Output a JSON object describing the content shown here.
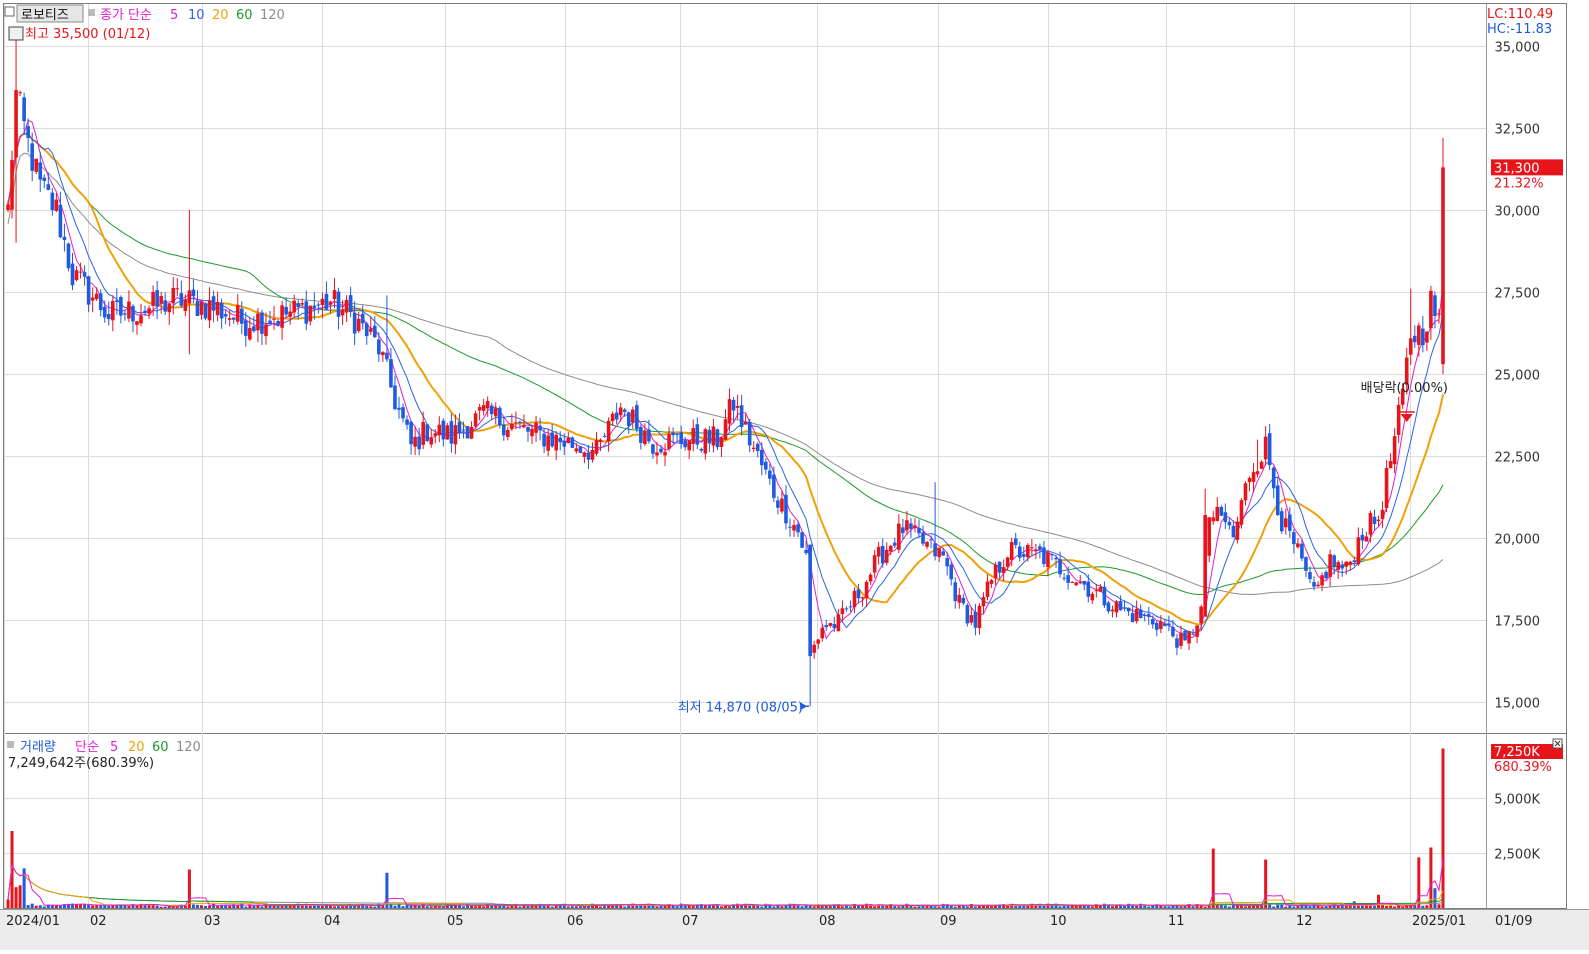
{
  "colors": {
    "up": "#e8141c",
    "down": "#1e5be0",
    "ma5": "#e01fd0",
    "ma10": "#2a63e6",
    "ma20": "#f0a10a",
    "ma60": "#1c9b2c",
    "ma120": "#8c8c8c",
    "grid": "#dcdcdc",
    "axis_text": "#333333",
    "current_price_bg": "#e8141c"
  },
  "price_panel": {
    "stock_name": "로보티즈",
    "legend_label": "종가 단순",
    "ma_periods": [
      "5",
      "10",
      "20",
      "60",
      "120"
    ],
    "high_label": "최고 35,500 (01/12)",
    "low_label": "최저 14,870 (08/05)",
    "dividend_label": "배당락(0.00%)",
    "lc_label": "LC:110.49",
    "hc_label": "HC:-11.83",
    "current_price": "31,300",
    "current_change": "21.32%",
    "y_ticks": [
      "35,000",
      "32,500",
      "30,000",
      "27,500",
      "25,000",
      "22,500",
      "20,000",
      "17,500",
      "15,000"
    ]
  },
  "volume_panel": {
    "title": "거래량",
    "legend_label": "단순",
    "ma_periods": [
      "5",
      "20",
      "60",
      "120"
    ],
    "last_volume": "7,249,642주(680.39%)",
    "current_volume": "7,250K",
    "current_change": "680.39%",
    "y_ticks": [
      "5,000K",
      "2,500K"
    ]
  },
  "x_axis": {
    "labels": [
      "2024/01",
      "02",
      "03",
      "04",
      "05",
      "06",
      "07",
      "08",
      "09",
      "10",
      "11",
      "12",
      "2025/01",
      "01/09"
    ]
  },
  "chart_data": {
    "type": "candlestick",
    "price_ylim": [
      14500,
      35700
    ],
    "volume_ylim": [
      0,
      7500000
    ],
    "months": [
      {
        "month": "2024/01",
        "open": 30000,
        "high": 35500,
        "low": 29000,
        "close": 28000,
        "volume": 1200000
      },
      {
        "month": "02",
        "open": 28000,
        "high": 28500,
        "low": 25800,
        "close": 27000,
        "volume": 300000
      },
      {
        "month": "03",
        "open": 27000,
        "high": 30000,
        "low": 25600,
        "close": 26500,
        "volume": 500000
      },
      {
        "month": "04",
        "open": 26500,
        "high": 27400,
        "low": 21500,
        "close": 22800,
        "volume": 400000
      },
      {
        "month": "05",
        "open": 22800,
        "high": 24200,
        "low": 22600,
        "close": 23200,
        "volume": 200000
      },
      {
        "month": "06",
        "open": 23200,
        "high": 25000,
        "low": 22200,
        "close": 22400,
        "volume": 200000
      },
      {
        "month": "07",
        "open": 22400,
        "high": 24200,
        "low": 22200,
        "close": 23000,
        "volume": 200000
      },
      {
        "month": "08",
        "open": 23000,
        "high": 23300,
        "low": 14870,
        "close": 19500,
        "volume": 300000
      },
      {
        "month": "09",
        "open": 19500,
        "high": 21700,
        "low": 17200,
        "close": 19000,
        "volume": 200000
      },
      {
        "month": "10",
        "open": 19000,
        "high": 20000,
        "low": 17200,
        "close": 17800,
        "volume": 150000
      },
      {
        "month": "11",
        "open": 17800,
        "high": 23000,
        "low": 16300,
        "close": 22000,
        "volume": 800000
      },
      {
        "month": "12",
        "open": 22000,
        "high": 22800,
        "low": 18000,
        "close": 20000,
        "volume": 400000
      },
      {
        "month": "2025/01",
        "open": 20000,
        "high": 32200,
        "low": 19800,
        "close": 31300,
        "volume": 7249642
      }
    ],
    "moving_average_endpoints": {
      "ma5": 27500,
      "ma10": 24000,
      "ma20": 22000,
      "ma60": 19900,
      "ma120": 19700
    }
  }
}
